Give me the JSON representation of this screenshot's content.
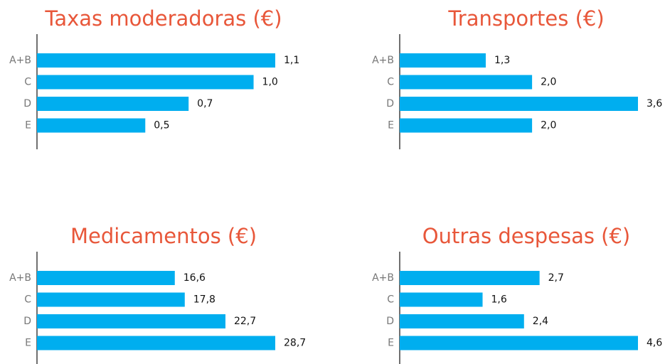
{
  "chart_data": [
    {
      "type": "bar",
      "orientation": "horizontal",
      "title": "Taxas moderadoras (€)",
      "categories": [
        "A+B",
        "C",
        "D",
        "E"
      ],
      "values": [
        1.1,
        1.0,
        0.7,
        0.5
      ],
      "value_labels": [
        "1,1",
        "1,0",
        "0,7",
        "0,5"
      ],
      "color": "#00aeef"
    },
    {
      "type": "bar",
      "orientation": "horizontal",
      "title": "Transportes (€)",
      "categories": [
        "A+B",
        "C",
        "D",
        "E"
      ],
      "values": [
        1.3,
        2.0,
        3.6,
        2.0
      ],
      "value_labels": [
        "1,3",
        "2,0",
        "3,6",
        "2,0"
      ],
      "color": "#00aeef"
    },
    {
      "type": "bar",
      "orientation": "horizontal",
      "title": "Medicamentos (€)",
      "categories": [
        "A+B",
        "C",
        "D",
        "E"
      ],
      "values": [
        16.6,
        17.8,
        22.7,
        28.7
      ],
      "value_labels": [
        "16,6",
        "17,8",
        "22,7",
        "28,7"
      ],
      "color": "#00aeef"
    },
    {
      "type": "bar",
      "orientation": "horizontal",
      "title": "Outras despesas (€)",
      "categories": [
        "A+B",
        "C",
        "D",
        "E"
      ],
      "values": [
        2.7,
        1.6,
        2.4,
        4.6
      ],
      "value_labels": [
        "2,7",
        "1,6",
        "2,4",
        "4,6"
      ],
      "color": "#00aeef"
    }
  ]
}
